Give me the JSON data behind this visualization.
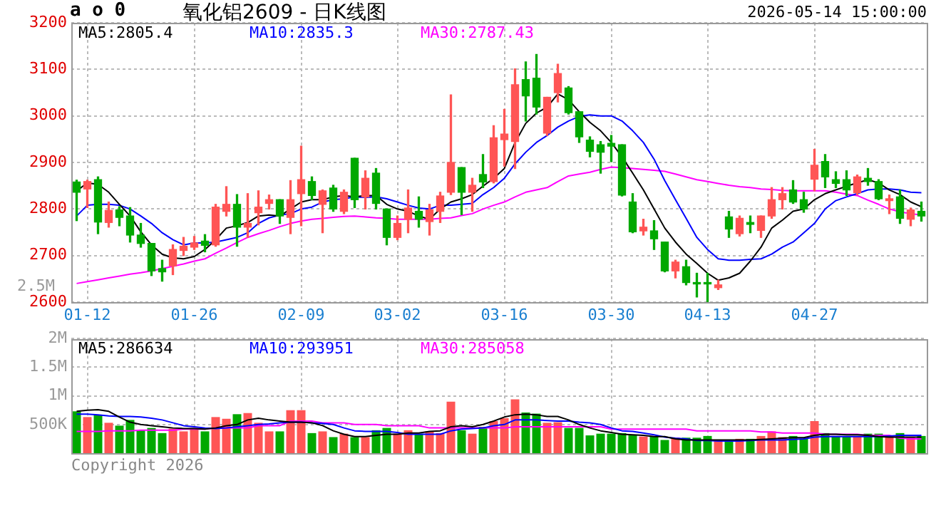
{
  "chart_data": [
    {
      "type": "candlestick",
      "title": "氧化铝2609 - 日K线图",
      "annotations": [
        "a o 0",
        "2026-05-14 15:00:00",
        "2.5M"
      ],
      "categories": [
        null,
        "01-12",
        null,
        null,
        null,
        null,
        null,
        null,
        null,
        null,
        null,
        "01-26",
        null,
        null,
        null,
        null,
        null,
        null,
        null,
        null,
        null,
        "02-09",
        null,
        null,
        null,
        null,
        null,
        null,
        null,
        null,
        "03-02",
        null,
        null,
        null,
        null,
        null,
        null,
        null,
        null,
        null,
        "03-16",
        null,
        null,
        null,
        null,
        null,
        null,
        null,
        null,
        null,
        "03-30",
        null,
        null,
        null,
        null,
        null,
        null,
        null,
        null,
        "04-13",
        null,
        null,
        null,
        null,
        null,
        null,
        null,
        null,
        null,
        "04-27",
        null,
        null,
        null,
        null,
        null,
        null,
        null,
        null,
        null,
        null
      ],
      "ohlc": [
        [
          2858,
          2862,
          2775,
          2836
        ],
        [
          2843,
          2862,
          2803,
          2859
        ],
        [
          2863,
          2869,
          2747,
          2772
        ],
        [
          2771,
          2815,
          2761,
          2797
        ],
        [
          2798,
          2805,
          2764,
          2782
        ],
        [
          2785,
          2803,
          2729,
          2744
        ],
        [
          2744,
          2769,
          2718,
          2726
        ],
        [
          2726,
          2726,
          2657,
          2667
        ],
        [
          2672,
          2690,
          2645,
          2665
        ],
        [
          2678,
          2723,
          2659,
          2713
        ],
        [
          2711,
          2739,
          2700,
          2720
        ],
        [
          2718,
          2741,
          2713,
          2727
        ],
        [
          2731,
          2745,
          2708,
          2722
        ],
        [
          2723,
          2810,
          2720,
          2804
        ],
        [
          2795,
          2848,
          2785,
          2810
        ],
        [
          2810,
          2831,
          2720,
          2761
        ],
        [
          2761,
          2833,
          2739,
          2769
        ],
        [
          2792,
          2839,
          2766,
          2804
        ],
        [
          2812,
          2830,
          2800,
          2820
        ],
        [
          2820,
          2820,
          2769,
          2785
        ],
        [
          2782,
          2861,
          2747,
          2820
        ],
        [
          2833,
          2935,
          2764,
          2863
        ],
        [
          2859,
          2869,
          2820,
          2829
        ],
        [
          2810,
          2841,
          2749,
          2839
        ],
        [
          2845,
          2851,
          2795,
          2800
        ],
        [
          2795,
          2841,
          2790,
          2836
        ],
        [
          2909,
          2909,
          2803,
          2820
        ],
        [
          2826,
          2882,
          2800,
          2866
        ],
        [
          2877,
          2887,
          2800,
          2812
        ],
        [
          2800,
          2800,
          2723,
          2739
        ],
        [
          2739,
          2785,
          2734,
          2769
        ],
        [
          2778,
          2841,
          2749,
          2802
        ],
        [
          2795,
          2826,
          2761,
          2778
        ],
        [
          2773,
          2810,
          2744,
          2798
        ],
        [
          2795,
          2836,
          2771,
          2828
        ],
        [
          2836,
          3045,
          2831,
          2900
        ],
        [
          2889,
          2889,
          2788,
          2836
        ],
        [
          2836,
          2866,
          2795,
          2851
        ],
        [
          2874,
          2917,
          2846,
          2858
        ],
        [
          2859,
          2979,
          2856,
          2953
        ],
        [
          2949,
          3014,
          2892,
          2961
        ],
        [
          2945,
          3101,
          2887,
          3067
        ],
        [
          3078,
          3116,
          2989,
          3043
        ],
        [
          3081,
          3132,
          3004,
          3019
        ],
        [
          2963,
          3040,
          2958,
          3040
        ],
        [
          3050,
          3111,
          3030,
          3091
        ],
        [
          3060,
          3063,
          3004,
          3007
        ],
        [
          3009,
          3009,
          2943,
          2955
        ],
        [
          2948,
          2955,
          2912,
          2924
        ],
        [
          2938,
          2945,
          2877,
          2922
        ],
        [
          2941,
          2958,
          2902,
          2935
        ],
        [
          2938,
          2938,
          2828,
          2830
        ],
        [
          2815,
          2833,
          2749,
          2751
        ],
        [
          2753,
          2778,
          2744,
          2761
        ],
        [
          2753,
          2775,
          2713,
          2736
        ],
        [
          2729,
          2729,
          2665,
          2667
        ],
        [
          2667,
          2690,
          2652,
          2686
        ],
        [
          2676,
          2690,
          2637,
          2642
        ],
        [
          2642,
          2662,
          2611,
          2639
        ],
        [
          2641,
          2662,
          2601,
          2639
        ],
        [
          2631,
          2647,
          2627,
          2637
        ],
        [
          2783,
          2795,
          2739,
          2757
        ],
        [
          2747,
          2785,
          2742,
          2780
        ],
        [
          2771,
          2785,
          2749,
          2767
        ],
        [
          2754,
          2785,
          2739,
          2785
        ],
        [
          2785,
          2846,
          2780,
          2820
        ],
        [
          2820,
          2846,
          2800,
          2833
        ],
        [
          2841,
          2861,
          2812,
          2815
        ],
        [
          2820,
          2836,
          2793,
          2800
        ],
        [
          2864,
          2928,
          2839,
          2894
        ],
        [
          2902,
          2917,
          2846,
          2869
        ],
        [
          2863,
          2880,
          2846,
          2855
        ],
        [
          2863,
          2882,
          2829,
          2841
        ],
        [
          2835,
          2873,
          2831,
          2869
        ],
        [
          2866,
          2887,
          2851,
          2859
        ],
        [
          2859,
          2863,
          2820,
          2822
        ],
        [
          2818,
          2830,
          2790,
          2822
        ],
        [
          2826,
          2841,
          2769,
          2780
        ],
        [
          2778,
          2802,
          2764,
          2798
        ],
        [
          2795,
          2815,
          2774,
          2785
        ]
      ],
      "colors": [
        "#00a800",
        "#ff5555",
        "#00a800",
        "#ff5555",
        "#00a800",
        "#00a800",
        "#00a800",
        "#00a800",
        "#00a800",
        "#ff5555",
        "#ff5555",
        "#ff5555",
        "#00a800",
        "#ff5555",
        "#ff5555",
        "#00a800",
        "#ff5555",
        "#ff5555",
        "#ff5555",
        "#00a800",
        "#ff5555",
        "#ff5555",
        "#00a800",
        "#ff5555",
        "#00a800",
        "#ff5555",
        "#00a800",
        "#ff5555",
        "#00a800",
        "#00a800",
        "#ff5555",
        "#ff5555",
        "#00a800",
        "#ff5555",
        "#ff5555",
        "#ff5555",
        "#00a800",
        "#ff5555",
        "#00a800",
        "#ff5555",
        "#ff5555",
        "#ff5555",
        "#00a800",
        "#00a800",
        "#ff5555",
        "#ff5555",
        "#00a800",
        "#00a800",
        "#00a800",
        "#00a800",
        "#00a800",
        "#00a800",
        "#00a800",
        "#ff5555",
        "#00a800",
        "#00a800",
        "#ff5555",
        "#00a800",
        "#00a800",
        "#00a800",
        "#ff5555",
        "#00a800",
        "#ff5555",
        "#00a800",
        "#ff5555",
        "#ff5555",
        "#ff5555",
        "#00a800",
        "#00a800",
        "#ff5555",
        "#00a800",
        "#00a800",
        "#00a800",
        "#ff5555",
        "#00a800",
        "#00a800",
        "#ff5555",
        "#00a800",
        "#ff5555",
        "#00a800"
      ],
      "series": [
        {
          "type": "line",
          "name": "MA5:2805.4",
          "color": "#000000",
          "values": [
            2839,
            2856,
            2853,
            2836,
            2810,
            2785,
            2751,
            2723,
            2703,
            2695,
            2693,
            2698,
            2713,
            2734,
            2759,
            2764,
            2771,
            2785,
            2787,
            2785,
            2800,
            2815,
            2820,
            2820,
            2826,
            2829,
            2826,
            2829,
            2829,
            2810,
            2800,
            2795,
            2785,
            2778,
            2800,
            2815,
            2822,
            2831,
            2849,
            2866,
            2887,
            2943,
            2984,
            3006,
            3019,
            3047,
            3035,
            3009,
            2986,
            2968,
            2943,
            2912,
            2877,
            2841,
            2800,
            2759,
            2729,
            2703,
            2683,
            2662,
            2647,
            2652,
            2662,
            2688,
            2718,
            2759,
            2776,
            2795,
            2800,
            2820,
            2833,
            2841,
            2849,
            2856,
            2863,
            2856,
            2841,
            2831,
            2815,
            2805
          ]
        },
        {
          "type": "line",
          "name": "MA10:2835.3",
          "color": "#0000ff",
          "values": [
            2785,
            2808,
            2810,
            2810,
            2808,
            2800,
            2785,
            2769,
            2749,
            2734,
            2723,
            2727,
            2727,
            2729,
            2734,
            2739,
            2749,
            2769,
            2781,
            2787,
            2790,
            2800,
            2804,
            2815,
            2820,
            2822,
            2826,
            2825,
            2826,
            2822,
            2815,
            2808,
            2802,
            2800,
            2808,
            2808,
            2810,
            2812,
            2831,
            2846,
            2866,
            2897,
            2922,
            2943,
            2958,
            2976,
            2989,
            2999,
            3002,
            3000,
            3000,
            2989,
            2968,
            2943,
            2907,
            2861,
            2820,
            2780,
            2739,
            2713,
            2693,
            2690,
            2690,
            2692,
            2693,
            2703,
            2718,
            2729,
            2749,
            2769,
            2800,
            2818,
            2826,
            2833,
            2841,
            2843,
            2843,
            2841,
            2836,
            2835
          ]
        },
        {
          "type": "line",
          "name": "MA30:2787.43",
          "color": "#ff00ff",
          "values": [
            2640,
            2644,
            2648,
            2652,
            2656,
            2660,
            2663,
            2667,
            2672,
            2677,
            2682,
            2688,
            2693,
            2705,
            2716,
            2728,
            2739,
            2747,
            2754,
            2762,
            2769,
            2774,
            2778,
            2780,
            2782,
            2784,
            2785,
            2783,
            2781,
            2780,
            2778,
            2778,
            2778,
            2778,
            2780,
            2781,
            2786,
            2790,
            2800,
            2808,
            2815,
            2826,
            2836,
            2841,
            2846,
            2859,
            2871,
            2875,
            2879,
            2885,
            2890,
            2889,
            2887,
            2885,
            2883,
            2881,
            2875,
            2869,
            2863,
            2859,
            2855,
            2851,
            2848,
            2846,
            2843,
            2842,
            2840,
            2839,
            2839,
            2839,
            2839,
            2836,
            2832,
            2829,
            2819,
            2810,
            2800,
            2794,
            2790,
            2787
          ]
        }
      ],
      "ylim": [
        2600,
        3200
      ],
      "yticks": [
        2600,
        2700,
        2800,
        2900,
        3000,
        3100,
        3200
      ],
      "grid": true,
      "legend": "top left"
    },
    {
      "type": "bar",
      "annotations": [
        "Copyright 2026"
      ],
      "categories": [
        null,
        null,
        null,
        null,
        null,
        null,
        null,
        null,
        null,
        null,
        null,
        null,
        null,
        null,
        null,
        null,
        null,
        null,
        null,
        null,
        null,
        null,
        null,
        null,
        null,
        null,
        null,
        null,
        null,
        null,
        null,
        null,
        null,
        null,
        null,
        null,
        null,
        null,
        null,
        null,
        null,
        null,
        null,
        null,
        null,
        null,
        null,
        null,
        null,
        null,
        null,
        null,
        null,
        null,
        null,
        null,
        null,
        null,
        null,
        null,
        null,
        null,
        null,
        null,
        null,
        null,
        null,
        null,
        null,
        null,
        null,
        null,
        null,
        null,
        null,
        null,
        null,
        null,
        null,
        null
      ],
      "series": [
        {
          "type": "bar",
          "colors": [
            "#00a800",
            "#ff5555",
            "#00a800",
            "#ff5555",
            "#00a800",
            "#00a800",
            "#00a800",
            "#00a800",
            "#00a800",
            "#ff5555",
            "#ff5555",
            "#ff5555",
            "#00a800",
            "#ff5555",
            "#ff5555",
            "#00a800",
            "#ff5555",
            "#ff5555",
            "#ff5555",
            "#00a800",
            "#ff5555",
            "#ff5555",
            "#00a800",
            "#ff5555",
            "#00a800",
            "#ff5555",
            "#00a800",
            "#ff5555",
            "#00a800",
            "#00a800",
            "#ff5555",
            "#ff5555",
            "#00a800",
            "#ff5555",
            "#ff5555",
            "#ff5555",
            "#00a800",
            "#ff5555",
            "#00a800",
            "#ff5555",
            "#ff5555",
            "#ff5555",
            "#00a800",
            "#00a800",
            "#ff5555",
            "#ff5555",
            "#00a800",
            "#00a800",
            "#00a800",
            "#00a800",
            "#00a800",
            "#00a800",
            "#00a800",
            "#ff5555",
            "#00a800",
            "#00a800",
            "#ff5555",
            "#00a800",
            "#00a800",
            "#00a800",
            "#ff5555",
            "#00a800",
            "#ff5555",
            "#00a800",
            "#ff5555",
            "#ff5555",
            "#ff5555",
            "#00a800",
            "#00a800",
            "#ff5555",
            "#00a800",
            "#00a800",
            "#00a800",
            "#ff5555",
            "#00a800",
            "#00a800",
            "#ff5555",
            "#00a800",
            "#ff5555",
            "#00a800"
          ],
          "values": [
            730000,
            630000,
            670000,
            530000,
            480000,
            580000,
            400000,
            440000,
            350000,
            430000,
            380000,
            440000,
            380000,
            630000,
            600000,
            680000,
            700000,
            530000,
            380000,
            380000,
            750000,
            750000,
            350000,
            380000,
            280000,
            340000,
            280000,
            280000,
            400000,
            440000,
            340000,
            400000,
            340000,
            380000,
            350000,
            900000,
            400000,
            340000,
            460000,
            560000,
            610000,
            940000,
            710000,
            690000,
            530000,
            540000,
            440000,
            440000,
            310000,
            340000,
            340000,
            350000,
            320000,
            290000,
            290000,
            230000,
            270000,
            270000,
            270000,
            300000,
            230000,
            230000,
            250000,
            250000,
            300000,
            380000,
            280000,
            300000,
            250000,
            560000,
            350000,
            300000,
            300000,
            300000,
            340000,
            340000,
            280000,
            350000,
            280000,
            300000
          ]
        },
        {
          "type": "line",
          "name": "MA5:286634",
          "color": "#000000",
          "values": [
            730000,
            750000,
            760000,
            730000,
            630000,
            540000,
            500000,
            480000,
            460000,
            440000,
            430000,
            430000,
            420000,
            440000,
            480000,
            500000,
            580000,
            610000,
            580000,
            560000,
            540000,
            540000,
            530000,
            480000,
            390000,
            330000,
            290000,
            290000,
            310000,
            330000,
            330000,
            350000,
            350000,
            380000,
            390000,
            460000,
            480000,
            460000,
            500000,
            560000,
            630000,
            670000,
            680000,
            670000,
            640000,
            640000,
            580000,
            500000,
            440000,
            390000,
            360000,
            330000,
            320000,
            310000,
            290000,
            290000,
            250000,
            230000,
            230000,
            230000,
            230000,
            230000,
            230000,
            230000,
            240000,
            250000,
            260000,
            270000,
            270000,
            310000,
            330000,
            330000,
            320000,
            320000,
            310000,
            290000,
            280000,
            280000,
            280000,
            280000
          ]
        },
        {
          "type": "line",
          "name": "MA10:293951",
          "color": "#0000ff",
          "values": [
            680000,
            680000,
            670000,
            650000,
            640000,
            640000,
            630000,
            610000,
            580000,
            530000,
            480000,
            460000,
            440000,
            430000,
            440000,
            460000,
            480000,
            500000,
            510000,
            530000,
            540000,
            540000,
            530000,
            520000,
            500000,
            440000,
            390000,
            380000,
            380000,
            380000,
            360000,
            330000,
            330000,
            330000,
            330000,
            390000,
            420000,
            430000,
            440000,
            480000,
            500000,
            580000,
            580000,
            580000,
            570000,
            560000,
            560000,
            540000,
            530000,
            500000,
            440000,
            390000,
            380000,
            350000,
            320000,
            280000,
            260000,
            250000,
            220000,
            220000,
            210000,
            210000,
            210000,
            220000,
            230000,
            230000,
            230000,
            240000,
            250000,
            280000,
            290000,
            290000,
            290000,
            290000,
            290000,
            290000,
            300000,
            310000,
            310000,
            310000
          ]
        },
        {
          "type": "line",
          "name": "MA30:285058",
          "color": "#ff00ff",
          "values": [
            380000,
            380000,
            380000,
            390000,
            390000,
            390000,
            400000,
            400000,
            400000,
            400000,
            420000,
            420000,
            420000,
            440000,
            440000,
            440000,
            440000,
            480000,
            480000,
            480000,
            560000,
            560000,
            560000,
            530000,
            530000,
            530000,
            500000,
            500000,
            500000,
            480000,
            480000,
            480000,
            480000,
            440000,
            440000,
            440000,
            440000,
            440000,
            440000,
            440000,
            440000,
            460000,
            460000,
            460000,
            460000,
            460000,
            460000,
            460000,
            460000,
            460000,
            420000,
            420000,
            420000,
            420000,
            420000,
            420000,
            420000,
            420000,
            390000,
            390000,
            390000,
            390000,
            390000,
            390000,
            370000,
            370000,
            350000,
            350000,
            350000,
            350000,
            330000,
            330000,
            330000,
            330000,
            310000,
            310000,
            310000,
            260000,
            250000,
            250000
          ]
        }
      ],
      "ylim": [
        0,
        2000000
      ],
      "yticks": [
        {
          "value": 500000,
          "label": "500K"
        },
        {
          "value": 1000000,
          "label": "1M"
        },
        {
          "value": 1500000,
          "label": "1.5M"
        },
        {
          "value": 2000000,
          "label": "2M"
        }
      ],
      "grid": true,
      "legend": "top left",
      "tick_labels": "y"
    }
  ]
}
